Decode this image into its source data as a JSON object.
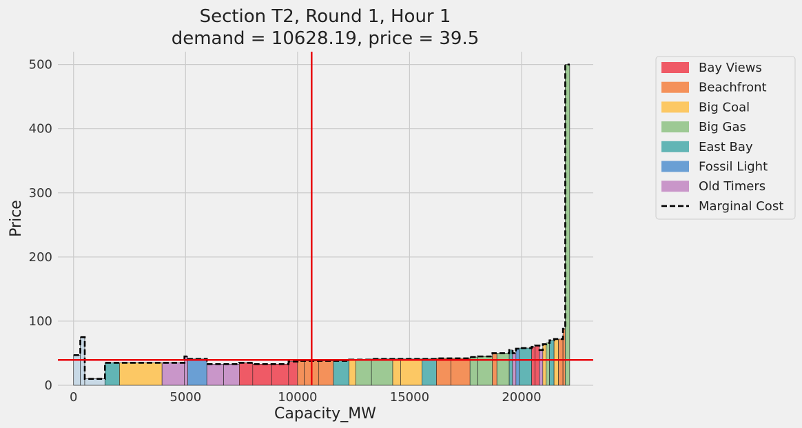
{
  "chart_data": {
    "type": "bar",
    "title_line1": "Section T2, Round 1, Hour 1",
    "title_line2": "demand = 10628.19, price = 39.5",
    "xlabel": "Capacity_MW",
    "ylabel": "Price",
    "xlim": [
      -700,
      23200
    ],
    "ylim": [
      0,
      520
    ],
    "x_ticks": [
      0,
      5000,
      10000,
      15000,
      20000
    ],
    "y_ticks": [
      0,
      100,
      200,
      300,
      400,
      500
    ],
    "grid": true,
    "demand": 10628.19,
    "price": 39.5,
    "legend_position": "outside-right",
    "series": [
      {
        "name": "Bay Views",
        "color": "#ef5a66"
      },
      {
        "name": "Beachfront",
        "color": "#f4915a"
      },
      {
        "name": "Big Coal",
        "color": "#fcc864"
      },
      {
        "name": "Big Gas",
        "color": "#9dc994"
      },
      {
        "name": "East Bay",
        "color": "#62b5b5"
      },
      {
        "name": "Fossil Light",
        "color": "#6a9fd4"
      },
      {
        "name": "Old Timers",
        "color": "#c996c9"
      },
      {
        "name": "Marginal Cost",
        "color": "#000000",
        "style": "dashed"
      }
    ],
    "other_color": "#c8d9e6",
    "segments": [
      {
        "x0": 0,
        "x1": 300,
        "price": 47,
        "owner": "Other"
      },
      {
        "x0": 300,
        "x1": 500,
        "price": 75,
        "owner": "Other"
      },
      {
        "x0": 500,
        "x1": 1400,
        "price": 10,
        "owner": "Other"
      },
      {
        "x0": 1400,
        "x1": 2050,
        "price": 35,
        "owner": "East Bay"
      },
      {
        "x0": 2050,
        "x1": 3950,
        "price": 35,
        "owner": "Big Coal"
      },
      {
        "x0": 3950,
        "x1": 4950,
        "price": 35,
        "owner": "Old Timers"
      },
      {
        "x0": 4950,
        "x1": 5100,
        "price": 45,
        "owner": "Old Timers"
      },
      {
        "x0": 5100,
        "x1": 5950,
        "price": 41,
        "owner": "Fossil Light"
      },
      {
        "x0": 5950,
        "x1": 6700,
        "price": 33,
        "owner": "Old Timers"
      },
      {
        "x0": 6700,
        "x1": 7400,
        "price": 33,
        "owner": "Old Timers"
      },
      {
        "x0": 7400,
        "x1": 8000,
        "price": 35,
        "owner": "Bay Views"
      },
      {
        "x0": 8000,
        "x1": 8850,
        "price": 33,
        "owner": "Bay Views"
      },
      {
        "x0": 8850,
        "x1": 9600,
        "price": 33,
        "owner": "Bay Views"
      },
      {
        "x0": 9600,
        "x1": 10000,
        "price": 37,
        "owner": "Bay Views"
      },
      {
        "x0": 10000,
        "x1": 10300,
        "price": 38,
        "owner": "Beachfront"
      },
      {
        "x0": 10300,
        "x1": 10950,
        "price": 38,
        "owner": "Beachfront"
      },
      {
        "x0": 10950,
        "x1": 11600,
        "price": 38,
        "owner": "Beachfront"
      },
      {
        "x0": 11600,
        "x1": 12300,
        "price": 38,
        "owner": "East Bay"
      },
      {
        "x0": 12300,
        "x1": 12600,
        "price": 40,
        "owner": "Big Coal"
      },
      {
        "x0": 12600,
        "x1": 13300,
        "price": 40,
        "owner": "Big Gas"
      },
      {
        "x0": 13300,
        "x1": 14250,
        "price": 41,
        "owner": "Big Gas"
      },
      {
        "x0": 14250,
        "x1": 14600,
        "price": 41,
        "owner": "Big Coal"
      },
      {
        "x0": 14600,
        "x1": 15550,
        "price": 41,
        "owner": "Big Coal"
      },
      {
        "x0": 15550,
        "x1": 16200,
        "price": 41,
        "owner": "East Bay"
      },
      {
        "x0": 16200,
        "x1": 16850,
        "price": 42,
        "owner": "Beachfront"
      },
      {
        "x0": 16850,
        "x1": 17700,
        "price": 42,
        "owner": "Beachfront"
      },
      {
        "x0": 17700,
        "x1": 18050,
        "price": 44,
        "owner": "Big Gas"
      },
      {
        "x0": 18050,
        "x1": 18700,
        "price": 45,
        "owner": "Big Gas"
      },
      {
        "x0": 18700,
        "x1": 18900,
        "price": 50,
        "owner": "Beachfront"
      },
      {
        "x0": 18900,
        "x1": 19450,
        "price": 50,
        "owner": "Big Gas"
      },
      {
        "x0": 19450,
        "x1": 19600,
        "price": 55,
        "owner": "East Bay"
      },
      {
        "x0": 19600,
        "x1": 19750,
        "price": 50,
        "owner": "Old Timers"
      },
      {
        "x0": 19750,
        "x1": 19900,
        "price": 57,
        "owner": "Fossil Light"
      },
      {
        "x0": 19900,
        "x1": 20450,
        "price": 58,
        "owner": "East Bay"
      },
      {
        "x0": 20450,
        "x1": 20600,
        "price": 60,
        "owner": "Bay Views"
      },
      {
        "x0": 20600,
        "x1": 20800,
        "price": 62,
        "owner": "Bay Views"
      },
      {
        "x0": 20800,
        "x1": 20950,
        "price": 55,
        "owner": "Old Timers"
      },
      {
        "x0": 20950,
        "x1": 21100,
        "price": 64,
        "owner": "Big Coal"
      },
      {
        "x0": 21100,
        "x1": 21250,
        "price": 66,
        "owner": "Big Gas"
      },
      {
        "x0": 21250,
        "x1": 21450,
        "price": 70,
        "owner": "East Bay"
      },
      {
        "x0": 21450,
        "x1": 21650,
        "price": 72,
        "owner": "Big Coal"
      },
      {
        "x0": 21650,
        "x1": 21850,
        "price": 72,
        "owner": "Beachfront"
      },
      {
        "x0": 21850,
        "x1": 21950,
        "price": 88,
        "owner": "Beachfront"
      },
      {
        "x0": 21950,
        "x1": 22150,
        "price": 500,
        "owner": "Big Gas"
      }
    ]
  }
}
